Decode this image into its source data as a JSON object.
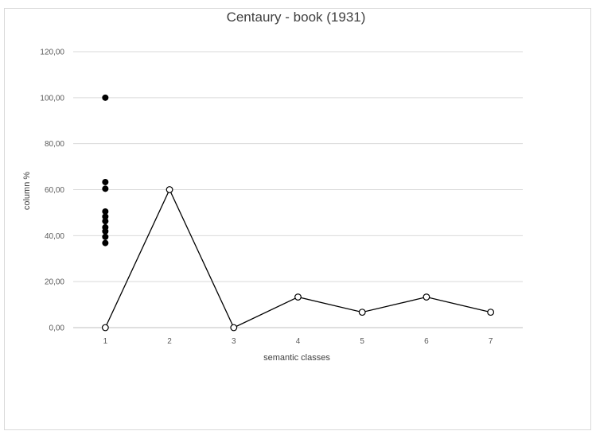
{
  "chart_data": {
    "type": "scatter",
    "title": "Centaury - book (1931)",
    "xlabel": "semantic classes",
    "ylabel": "column %",
    "x_ticks": [
      "1",
      "2",
      "3",
      "4",
      "5",
      "6",
      "7"
    ],
    "y_ticks": [
      "0,00",
      "20,00",
      "40,00",
      "60,00",
      "80,00",
      "100,00",
      "120,00"
    ],
    "ylim": [
      0,
      120
    ],
    "xlim": [
      0.5,
      7.5
    ],
    "grid": "horizontal",
    "series": [
      {
        "kind": "scatter",
        "marker": "filled-circle",
        "color": "#000000",
        "points": [
          {
            "x": 1,
            "y": 100
          },
          {
            "x": 1,
            "y": 63.3
          },
          {
            "x": 1,
            "y": 60.4
          },
          {
            "x": 1,
            "y": 50.5
          },
          {
            "x": 1,
            "y": 48.3
          },
          {
            "x": 1,
            "y": 46.3
          },
          {
            "x": 1,
            "y": 43.6
          },
          {
            "x": 1,
            "y": 41.9
          },
          {
            "x": 1,
            "y": 39.5
          },
          {
            "x": 1,
            "y": 36.8
          }
        ]
      },
      {
        "kind": "line",
        "marker": "open-circle",
        "color": "#000000",
        "points": [
          {
            "x": 1,
            "y": 0
          },
          {
            "x": 2,
            "y": 60
          },
          {
            "x": 3,
            "y": 0
          },
          {
            "x": 4,
            "y": 13.3
          },
          {
            "x": 5,
            "y": 6.7
          },
          {
            "x": 6,
            "y": 13.3
          },
          {
            "x": 7,
            "y": 6.7
          }
        ]
      }
    ]
  }
}
